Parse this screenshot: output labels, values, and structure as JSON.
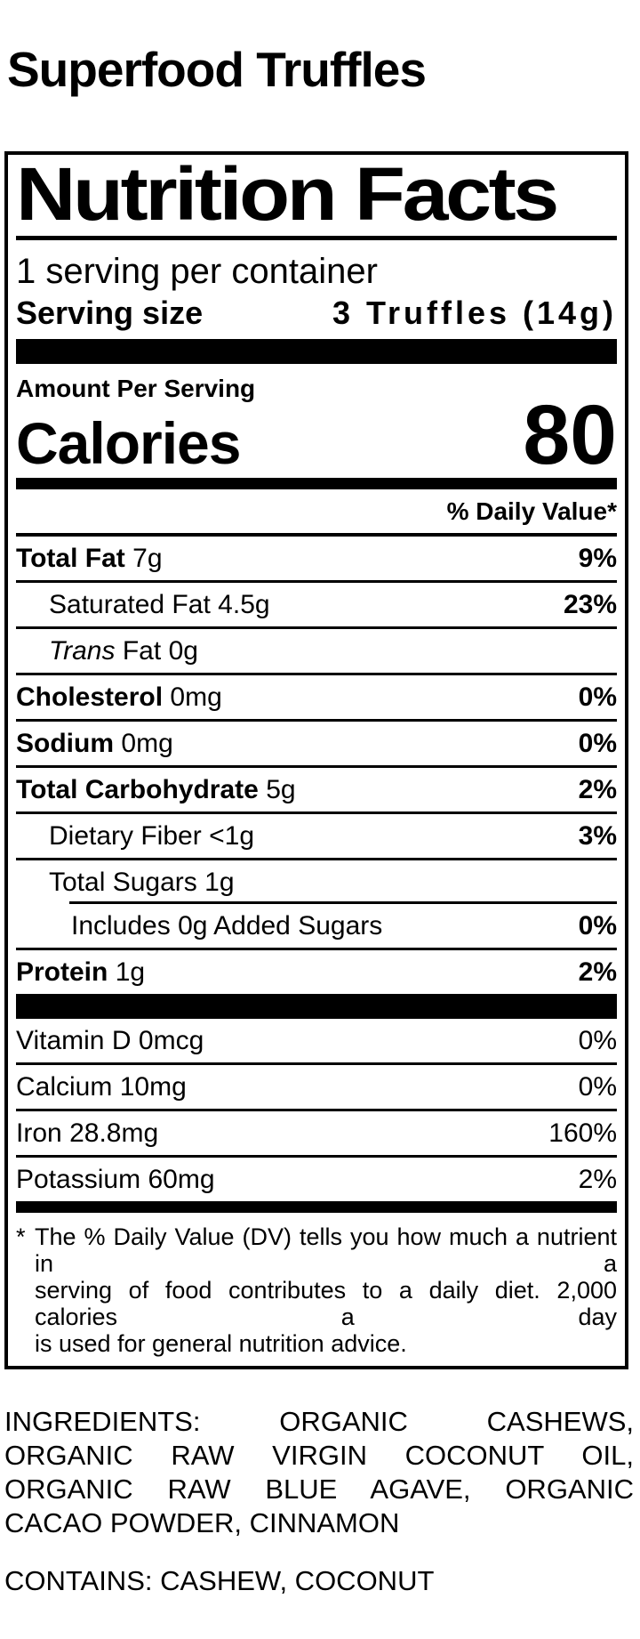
{
  "colors": {
    "text": "#000000",
    "background": "#ffffff"
  },
  "product": {
    "title": "Superfood Truffles"
  },
  "nutrition_label": {
    "title": "Nutrition Facts",
    "servings_per_container": "1 serving per container",
    "serving_size": {
      "label": "Serving size",
      "value": "3 Truffles (14g)"
    },
    "amount_per_serving": "Amount Per Serving",
    "calories": {
      "label": "Calories",
      "value": "80"
    },
    "daily_value_header": "% Daily Value*",
    "nutrients": [
      {
        "name": "Total Fat",
        "amount": "7g",
        "dv": "9%"
      },
      {
        "name": "Saturated Fat",
        "amount": "4.5g",
        "dv": "23%"
      },
      {
        "name_italic": "Trans",
        "name": "Fat",
        "amount": "0g",
        "dv": ""
      },
      {
        "name": "Cholesterol",
        "amount": "0mg",
        "dv": "0%"
      },
      {
        "name": "Sodium",
        "amount": "0mg",
        "dv": "0%"
      },
      {
        "name": "Total Carbohydrate",
        "amount": "5g",
        "dv": "2%"
      },
      {
        "name": "Dietary Fiber",
        "amount": "<1g",
        "dv": "3%"
      },
      {
        "name": "Total Sugars",
        "amount": "1g",
        "dv": ""
      },
      {
        "name": "Includes 0g Added Sugars",
        "amount": "",
        "dv": "0%"
      },
      {
        "name": "Protein",
        "amount": "1g",
        "dv": "2%"
      }
    ],
    "vitamins": [
      {
        "name": "Vitamin D",
        "amount": "0mcg",
        "dv": "0%"
      },
      {
        "name": "Calcium",
        "amount": "10mg",
        "dv": "0%"
      },
      {
        "name": "Iron",
        "amount": "28.8mg",
        "dv": "160%"
      },
      {
        "name": "Potassium",
        "amount": "60mg",
        "dv": "2%"
      }
    ],
    "footnote": {
      "marker": "*",
      "lines": [
        "The % Daily Value (DV) tells you how much a nutrient in a",
        "serving of food contributes to a daily diet. 2,000 calories a day",
        "is used for general nutrition advice."
      ]
    }
  },
  "ingredients": {
    "lines": [
      "INGREDIENTS: ORGANIC CASHEWS,",
      "ORGANIC RAW VIRGIN COCONUT OIL,",
      "ORGANIC RAW BLUE AGAVE, ORGANIC",
      "CACAO POWDER, CINNAMON"
    ],
    "contains": "CONTAINS: CASHEW, COCONUT"
  }
}
